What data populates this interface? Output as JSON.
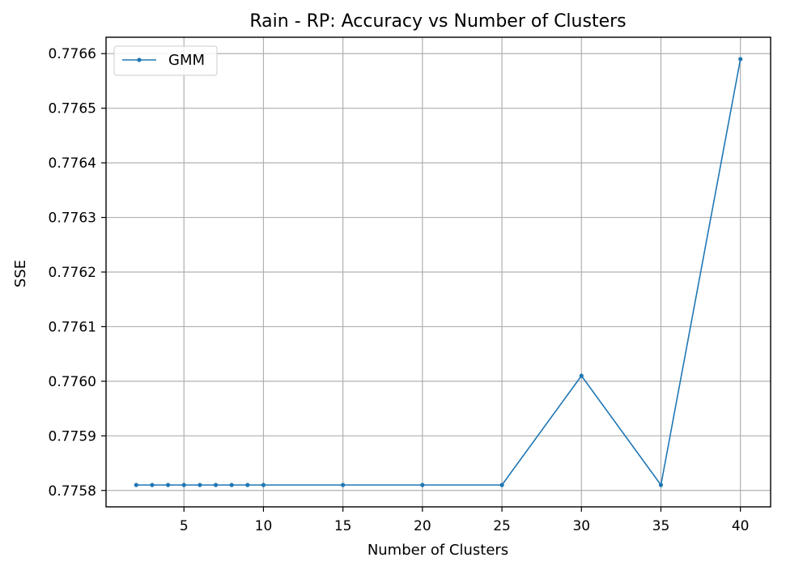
{
  "chart_data": {
    "type": "line",
    "title": "Rain - RP: Accuracy vs Number of Clusters",
    "xlabel": "Number of Clusters",
    "ylabel": "SSE",
    "xlim": [
      0.1,
      41.9
    ],
    "ylim": [
      0.77577,
      0.77663
    ],
    "xticks": [
      5,
      10,
      15,
      20,
      25,
      30,
      35,
      40
    ],
    "xtick_labels": [
      "5",
      "10",
      "15",
      "20",
      "25",
      "30",
      "35",
      "40"
    ],
    "yticks": [
      0.7758,
      0.7759,
      0.776,
      0.7761,
      0.7762,
      0.7763,
      0.7764,
      0.7765,
      0.7766
    ],
    "ytick_labels": [
      "0.7758",
      "0.7759",
      "0.7760",
      "0.7761",
      "0.7762",
      "0.7763",
      "0.7764",
      "0.7765",
      "0.7766"
    ],
    "grid": true,
    "legend_position": "top-left",
    "series": [
      {
        "name": "GMM",
        "color": "#1f77b4",
        "marker": "point",
        "x": [
          2,
          3,
          4,
          5,
          6,
          7,
          8,
          9,
          10,
          15,
          20,
          25,
          30,
          35,
          40
        ],
        "y": [
          0.77581,
          0.77581,
          0.77581,
          0.77581,
          0.77581,
          0.77581,
          0.77581,
          0.77581,
          0.77581,
          0.77581,
          0.77581,
          0.77581,
          0.77601,
          0.77581,
          0.77659
        ]
      }
    ]
  }
}
